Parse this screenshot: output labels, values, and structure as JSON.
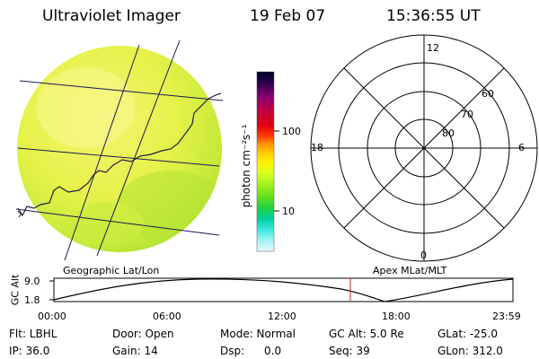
{
  "header": {
    "title": "Ultraviolet Imager",
    "date": "19 Feb 07",
    "time": "15:36:55 UT"
  },
  "geo_panel": {
    "caption": "Geographic Lat/Lon"
  },
  "colorbar": {
    "label": "photon cm⁻²s⁻¹",
    "ticks": [
      "100",
      "10"
    ],
    "colors": [
      "#000020",
      "#2a0050",
      "#8a0070",
      "#c00040",
      "#e00010",
      "#ff4000",
      "#ff9000",
      "#ffc800",
      "#fff000",
      "#e0ff20",
      "#a0f020",
      "#60e020",
      "#20d040",
      "#00d0a0",
      "#40e8e0",
      "#a0f4f4",
      "#e8fafa"
    ]
  },
  "polar_panel": {
    "caption": "Apex MLat/MLT",
    "mlt_labels": {
      "top": "12",
      "right": "6",
      "bottom": "0",
      "left": "18"
    },
    "lat_labels": [
      "60",
      "70",
      "80"
    ]
  },
  "timeline": {
    "ylabel": "GC Alt",
    "y_ticks": [
      "9.0",
      "1.8"
    ],
    "x_ticks": [
      "00:00",
      "06:00",
      "12:00",
      "18:00",
      "23:59"
    ],
    "current_time_marker": "15:36:55"
  },
  "info": {
    "filter": "Flt: LBHL",
    "door": "Door: Open",
    "mode": "Mode: Normal",
    "gc_alt": "GC Alt: 5.0 Re",
    "glat": "GLat: -25.0",
    "ip": "IP: 36.0",
    "gain": "Gain: 14",
    "dsp_label": "Dsp:",
    "dsp_value": "0.0",
    "seq": "Seq: 39",
    "glon": "GLon: 312.0"
  }
}
